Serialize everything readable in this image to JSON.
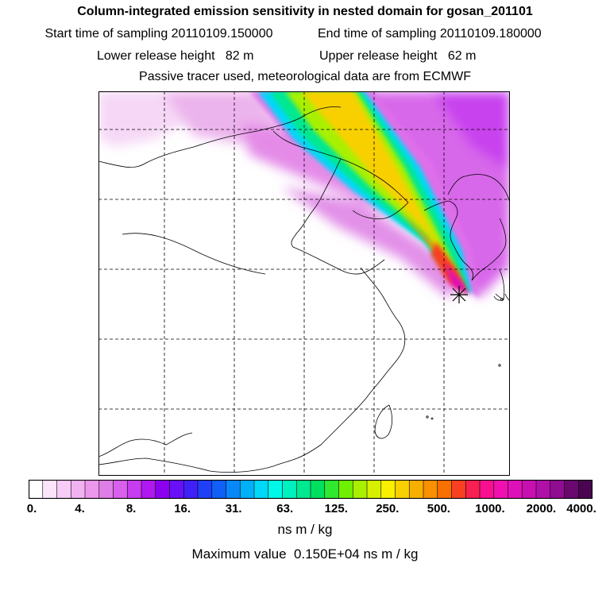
{
  "header": {
    "title": "Column-integrated emission sensitivity in nested domain for gosan_201101",
    "start_time": "Start time of sampling 20110109.150000",
    "end_time": "End time of sampling 20110109.180000",
    "lower_release": "Lower release height   82 m",
    "upper_release": "Upper release height   62 m",
    "tracer_note": "Passive tracer used, meteorological data are from ECMWF"
  },
  "map": {
    "receptor_marker": "star",
    "plume_direction": "northwest"
  },
  "colorbar": {
    "colors": [
      "#ffffff",
      "#fbe5fb",
      "#f7ccf7",
      "#f2b2f2",
      "#ec97ec",
      "#e07ee8",
      "#d860ec",
      "#c83cef",
      "#b018f0",
      "#8c00f0",
      "#6a10f6",
      "#4020f8",
      "#2040f8",
      "#1060f8",
      "#0888f8",
      "#00b0f8",
      "#00d8f8",
      "#00f8e8",
      "#00f0c0",
      "#00e890",
      "#00e060",
      "#30e830",
      "#70f000",
      "#a8f000",
      "#d8f000",
      "#f8f000",
      "#f8d000",
      "#f8b000",
      "#f89000",
      "#f87000",
      "#f84020",
      "#f82050",
      "#f81090",
      "#f010b0",
      "#e010b8",
      "#c810b0",
      "#b010a8",
      "#900c90",
      "#6a0870",
      "#4a0450"
    ],
    "tick_labels": [
      "0.",
      "4.",
      "8.",
      "16.",
      "31.",
      "63.",
      "125.",
      "250.",
      "500.",
      "1000.",
      "2000.",
      "4000."
    ],
    "units": "ns m / kg",
    "max_value": "Maximum value  0.150E+04 ns m / kg"
  }
}
